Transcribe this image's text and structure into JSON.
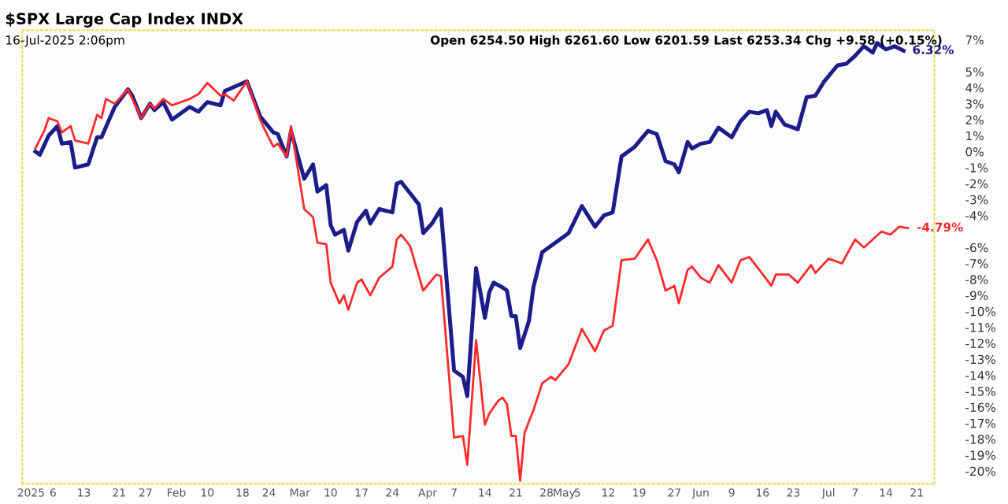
{
  "chart_data": {
    "type": "line",
    "title": "$SPX Large Cap Index INDX",
    "annotations": [
      "16-Jul-2025 2:06pm",
      "Open 6254.50 High 6261.60 Low 6201.59 Last 6253.34 Chg +9.58 (+0.15%)",
      {
        "text": "6.32%",
        "x": "2025-07-18",
        "y": 6.32
      },
      {
        "text": "-4.79%",
        "x": "2025-07-19",
        "y": -4.79
      }
    ],
    "series": [
      {
        "color": "#1c1c8a",
        "x": [
          "2025-01-02",
          "2025-01-03",
          "2025-01-05",
          "2025-01-07",
          "2025-01-08",
          "2025-01-10",
          "2025-01-11",
          "2025-01-14",
          "2025-01-16",
          "2025-01-17",
          "2025-01-20",
          "2025-01-23",
          "2025-01-24",
          "2025-01-26",
          "2025-01-28",
          "2025-01-29",
          "2025-01-31",
          "2025-02-02",
          "2025-02-06",
          "2025-02-08",
          "2025-02-10",
          "2025-02-13",
          "2025-02-14",
          "2025-02-19",
          "2025-02-22",
          "2025-02-25",
          "2025-02-26",
          "2025-02-28",
          "2025-03-01",
          "2025-03-04",
          "2025-03-06",
          "2025-03-07",
          "2025-03-09",
          "2025-03-10",
          "2025-03-11",
          "2025-03-13",
          "2025-03-14",
          "2025-03-16",
          "2025-03-18",
          "2025-03-19",
          "2025-03-21",
          "2025-03-24",
          "2025-03-25",
          "2025-03-26",
          "2025-03-28",
          "2025-03-30",
          "2025-03-31",
          "2025-04-02",
          "2025-04-04",
          "2025-04-07",
          "2025-04-09",
          "2025-04-10",
          "2025-04-12",
          "2025-04-14",
          "2025-04-15",
          "2025-04-16",
          "2025-04-18",
          "2025-04-19",
          "2025-04-20",
          "2025-04-21",
          "2025-04-22",
          "2025-04-24",
          "2025-04-25",
          "2025-04-27",
          "2025-04-29",
          "2025-05-03",
          "2025-05-06",
          "2025-05-09",
          "2025-05-11",
          "2025-05-13",
          "2025-05-15",
          "2025-05-18",
          "2025-05-21",
          "2025-05-23",
          "2025-05-25",
          "2025-05-27",
          "2025-05-28",
          "2025-05-30",
          "2025-05-31",
          "2025-06-02",
          "2025-06-04",
          "2025-06-06",
          "2025-06-09",
          "2025-06-11",
          "2025-06-13",
          "2025-06-15",
          "2025-06-17",
          "2025-06-18",
          "2025-06-19",
          "2025-06-21",
          "2025-06-24",
          "2025-06-26",
          "2025-06-28",
          "2025-06-30",
          "2025-07-03",
          "2025-07-05",
          "2025-07-07",
          "2025-07-09",
          "2025-07-11",
          "2025-07-12",
          "2025-07-14",
          "2025-07-16",
          "2025-07-18"
        ],
        "values": [
          0.0,
          -0.2,
          1.0,
          1.6,
          0.5,
          0.6,
          -1.0,
          -0.8,
          0.9,
          0.9,
          2.8,
          3.9,
          3.5,
          2.1,
          3.0,
          2.6,
          3.1,
          2.0,
          2.8,
          2.5,
          3.1,
          2.9,
          3.8,
          4.4,
          2.2,
          1.2,
          1.1,
          -0.3,
          1.3,
          -1.7,
          -0.8,
          -2.5,
          -2.1,
          -4.6,
          -5.2,
          -4.9,
          -6.2,
          -4.4,
          -3.7,
          -4.5,
          -3.6,
          -3.8,
          -2.0,
          -1.9,
          -2.6,
          -3.3,
          -5.1,
          -4.5,
          -3.6,
          -13.7,
          -14.1,
          -15.3,
          -7.3,
          -10.4,
          -8.8,
          -8.2,
          -8.5,
          -8.7,
          -10.3,
          -10.3,
          -12.3,
          -10.6,
          -8.5,
          -6.3,
          -5.9,
          -5.1,
          -3.4,
          -4.7,
          -4.0,
          -3.8,
          -0.3,
          0.3,
          1.3,
          1.1,
          -0.6,
          -0.8,
          -1.3,
          0.6,
          0.2,
          0.5,
          0.6,
          1.5,
          0.9,
          1.9,
          2.5,
          2.4,
          2.6,
          1.6,
          2.5,
          1.7,
          1.4,
          3.4,
          3.5,
          4.4,
          5.4,
          5.5,
          6.0,
          6.6,
          6.2,
          6.8,
          6.4,
          6.6,
          6.32
        ]
      },
      {
        "color": "#ff2a2a",
        "x": [
          "2025-01-02",
          "2025-01-04",
          "2025-01-05",
          "2025-01-07",
          "2025-01-08",
          "2025-01-10",
          "2025-01-11",
          "2025-01-14",
          "2025-01-16",
          "2025-01-17",
          "2025-01-18",
          "2025-01-20",
          "2025-01-23",
          "2025-01-26",
          "2025-01-28",
          "2025-01-29",
          "2025-01-31",
          "2025-02-02",
          "2025-02-06",
          "2025-02-08",
          "2025-02-10",
          "2025-02-13",
          "2025-02-14",
          "2025-02-16",
          "2025-02-19",
          "2025-02-22",
          "2025-02-23",
          "2025-02-25",
          "2025-02-26",
          "2025-02-28",
          "2025-03-01",
          "2025-03-04",
          "2025-03-06",
          "2025-03-07",
          "2025-03-09",
          "2025-03-10",
          "2025-03-12",
          "2025-03-13",
          "2025-03-14",
          "2025-03-16",
          "2025-03-17",
          "2025-03-19",
          "2025-03-21",
          "2025-03-24",
          "2025-03-25",
          "2025-03-26",
          "2025-03-28",
          "2025-03-31",
          "2025-04-03",
          "2025-04-04",
          "2025-04-07",
          "2025-04-09",
          "2025-04-10",
          "2025-04-12",
          "2025-04-14",
          "2025-04-15",
          "2025-04-17",
          "2025-04-18",
          "2025-04-19",
          "2025-04-20",
          "2025-04-21",
          "2025-04-22",
          "2025-04-23",
          "2025-04-25",
          "2025-04-27",
          "2025-04-29",
          "2025-04-30",
          "2025-05-03",
          "2025-05-06",
          "2025-05-09",
          "2025-05-11",
          "2025-05-13",
          "2025-05-15",
          "2025-05-18",
          "2025-05-21",
          "2025-05-23",
          "2025-05-25",
          "2025-05-27",
          "2025-05-28",
          "2025-05-30",
          "2025-05-31",
          "2025-06-02",
          "2025-06-04",
          "2025-06-06",
          "2025-06-09",
          "2025-06-11",
          "2025-06-13",
          "2025-06-15",
          "2025-06-18",
          "2025-06-19",
          "2025-06-22",
          "2025-06-24",
          "2025-06-27",
          "2025-06-28",
          "2025-07-01",
          "2025-07-04",
          "2025-07-07",
          "2025-07-09",
          "2025-07-13",
          "2025-07-15",
          "2025-07-17",
          "2025-07-19"
        ],
        "values": [
          0.2,
          1.3,
          2.1,
          1.9,
          1.2,
          1.6,
          0.7,
          0.5,
          2.3,
          2.1,
          3.3,
          3.0,
          3.9,
          2.1,
          3.0,
          2.7,
          3.3,
          2.9,
          3.3,
          3.6,
          4.3,
          3.5,
          3.6,
          3.2,
          4.4,
          2.0,
          1.4,
          0.3,
          0.5,
          -0.3,
          1.6,
          -3.6,
          -4.1,
          -5.7,
          -5.8,
          -8.2,
          -9.5,
          -9.0,
          -9.9,
          -8.2,
          -8.0,
          -9.0,
          -7.9,
          -7.2,
          -5.5,
          -5.2,
          -5.9,
          -8.7,
          -7.7,
          -7.8,
          -17.9,
          -17.8,
          -19.6,
          -11.8,
          -17.1,
          -16.4,
          -15.6,
          -15.4,
          -15.8,
          -17.8,
          -17.8,
          -20.6,
          -17.6,
          -16.2,
          -14.5,
          -14.1,
          -14.3,
          -13.3,
          -11.1,
          -12.5,
          -11.2,
          -10.9,
          -6.8,
          -6.7,
          -5.5,
          -6.8,
          -8.7,
          -8.4,
          -9.5,
          -7.4,
          -7.2,
          -7.9,
          -8.2,
          -7.1,
          -8.2,
          -6.8,
          -6.6,
          -7.3,
          -8.4,
          -7.7,
          -7.7,
          -8.2,
          -7.1,
          -7.6,
          -6.7,
          -7.0,
          -5.5,
          -6.0,
          -5.0,
          -5.2,
          -4.7,
          -4.79
        ]
      }
    ],
    "xlim": [
      "2024-12-30",
      "2025-07-25"
    ],
    "xticks": [
      {
        "value": "2025-01-01",
        "label": "2025"
      },
      {
        "value": "2025-01-06",
        "label": "6"
      },
      {
        "value": "2025-01-13",
        "label": "13"
      },
      {
        "value": "2025-01-21",
        "label": "21"
      },
      {
        "value": "2025-01-27",
        "label": "27"
      },
      {
        "value": "2025-02-03",
        "label": "Feb"
      },
      {
        "value": "2025-02-10",
        "label": "10"
      },
      {
        "value": "2025-02-18",
        "label": "18"
      },
      {
        "value": "2025-02-24",
        "label": "24"
      },
      {
        "value": "2025-03-03",
        "label": "Mar"
      },
      {
        "value": "2025-03-10",
        "label": "10"
      },
      {
        "value": "2025-03-17",
        "label": "17"
      },
      {
        "value": "2025-03-24",
        "label": "24"
      },
      {
        "value": "2025-04-01",
        "label": "Apr"
      },
      {
        "value": "2025-04-07",
        "label": "7"
      },
      {
        "value": "2025-04-14",
        "label": "14"
      },
      {
        "value": "2025-04-21",
        "label": "21"
      },
      {
        "value": "2025-04-28",
        "label": "28"
      },
      {
        "value": "2025-05-02",
        "label": "May"
      },
      {
        "value": "2025-05-05",
        "label": "5"
      },
      {
        "value": "2025-05-12",
        "label": "12"
      },
      {
        "value": "2025-05-19",
        "label": "19"
      },
      {
        "value": "2025-05-27",
        "label": "27"
      },
      {
        "value": "2025-06-02",
        "label": "Jun"
      },
      {
        "value": "2025-06-09",
        "label": "9"
      },
      {
        "value": "2025-06-16",
        "label": "16"
      },
      {
        "value": "2025-06-23",
        "label": "23"
      },
      {
        "value": "2025-07-01",
        "label": "Jul"
      },
      {
        "value": "2025-07-07",
        "label": "7"
      },
      {
        "value": "2025-07-14",
        "label": "14"
      },
      {
        "value": "2025-07-21",
        "label": "21"
      }
    ],
    "ylim": [
      -20.8,
      7.6
    ],
    "yticks": [
      {
        "value": 7,
        "label": "7%"
      },
      {
        "value": 5,
        "label": "5%"
      },
      {
        "value": 4,
        "label": "4%"
      },
      {
        "value": 3,
        "label": "3%"
      },
      {
        "value": 2,
        "label": "2%"
      },
      {
        "value": 1,
        "label": "1%"
      },
      {
        "value": 0,
        "label": "0%"
      },
      {
        "value": -1,
        "label": "-1%"
      },
      {
        "value": -2,
        "label": "-2%"
      },
      {
        "value": -3,
        "label": "-3%"
      },
      {
        "value": -4,
        "label": "-4%"
      },
      {
        "value": -6,
        "label": "-6%"
      },
      {
        "value": -7,
        "label": "-7%"
      },
      {
        "value": -8,
        "label": "-8%"
      },
      {
        "value": -9,
        "label": "-9%"
      },
      {
        "value": -10,
        "label": "-10%"
      },
      {
        "value": -11,
        "label": "-11%"
      },
      {
        "value": -12,
        "label": "-12%"
      },
      {
        "value": -13,
        "label": "-13%"
      },
      {
        "value": -14,
        "label": "-14%"
      },
      {
        "value": -15,
        "label": "-15%"
      },
      {
        "value": -16,
        "label": "-16%"
      },
      {
        "value": -17,
        "label": "-17%"
      },
      {
        "value": -18,
        "label": "-18%"
      },
      {
        "value": -19,
        "label": "-19%"
      },
      {
        "value": -20,
        "label": "-20%"
      }
    ],
    "grid": false,
    "marker": "none",
    "line_style": "solid"
  }
}
